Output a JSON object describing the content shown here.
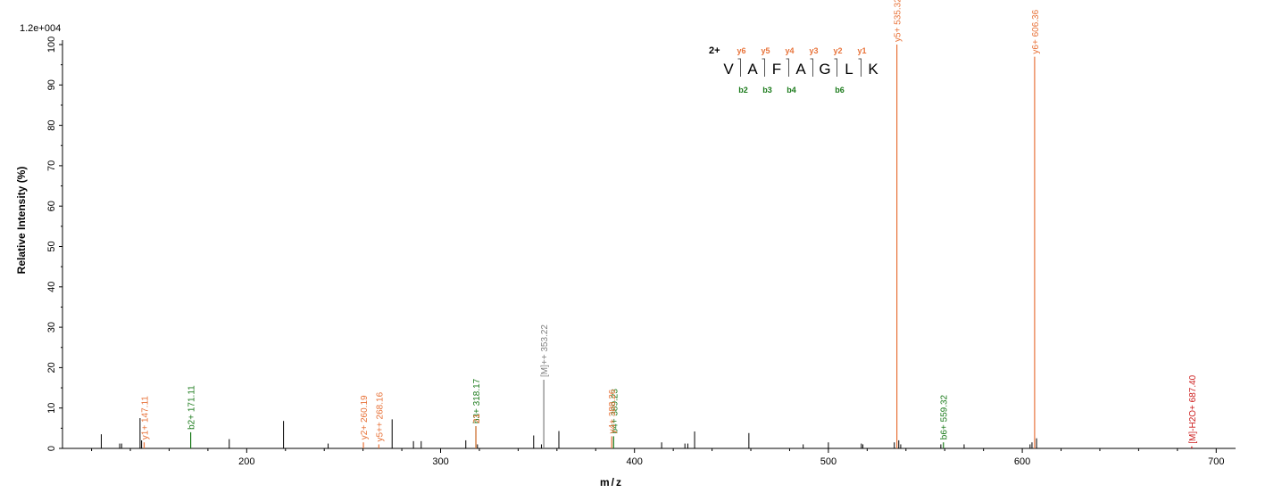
{
  "chart_data": {
    "type": "bar",
    "scale_label": "1.2e+004",
    "xlabel": "m/z",
    "ylabel": "Relative   Intensity (%)",
    "xlim": [
      105,
      710
    ],
    "ylim": [
      0,
      100
    ],
    "x_ticks": [
      200,
      300,
      400,
      500,
      600,
      700
    ],
    "y_ticks": [
      0,
      10,
      20,
      30,
      40,
      50,
      60,
      70,
      80,
      90,
      100
    ],
    "colors": {
      "y": "#e8733a",
      "b": "#1a7a1a",
      "precursor": "#808080",
      "loss": "#cc1a1a",
      "other": "#000000",
      "charge": "#00008b",
      "axis": "#000000"
    },
    "annotated_peaks": [
      {
        "mz": 147.11,
        "intensity": 1.5,
        "label": "y1+ 147.11",
        "ion": "y"
      },
      {
        "mz": 171.11,
        "intensity": 4.0,
        "label": "b2+ 171.11",
        "ion": "b"
      },
      {
        "mz": 260.19,
        "intensity": 1.5,
        "label": "y2+ 260.19",
        "ion": "y"
      },
      {
        "mz": 268.16,
        "intensity": 1.0,
        "label": "y5++ 268.16",
        "ion": "y"
      },
      {
        "mz": 318.17,
        "intensity": 5.5,
        "label": "b3+ 318.17",
        "ion": "b"
      },
      {
        "mz": 318.21,
        "intensity": 5.5,
        "label": "21",
        "ion": "y"
      },
      {
        "mz": 353.22,
        "intensity": 17.0,
        "label": "[M]++ 353.22",
        "ion": "precursor"
      },
      {
        "mz": 389.23,
        "intensity": 3.0,
        "label": "b4+ 389.23",
        "ion": "b"
      },
      {
        "mz": 388.26,
        "intensity": 3.0,
        "label": "y4+ 388.26",
        "ion": "y"
      },
      {
        "mz": 535.32,
        "intensity": 100,
        "label": "y5+ 535.32",
        "ion": "y"
      },
      {
        "mz": 559.32,
        "intensity": 1.5,
        "label": "b6+ 559.32",
        "ion": "b"
      },
      {
        "mz": 606.36,
        "intensity": 97,
        "label": "y6+ 606.36",
        "ion": "y"
      },
      {
        "mz": 687.4,
        "intensity": 0.5,
        "label": "[M]-H2O+ 687.40",
        "ion": "loss"
      }
    ],
    "other_peaks": [
      {
        "mz": 125.0,
        "intensity": 3.5
      },
      {
        "mz": 134.5,
        "intensity": 1.2
      },
      {
        "mz": 135.5,
        "intensity": 1.2
      },
      {
        "mz": 145.0,
        "intensity": 7.5
      },
      {
        "mz": 145.8,
        "intensity": 2.0
      },
      {
        "mz": 191.0,
        "intensity": 2.3
      },
      {
        "mz": 219.0,
        "intensity": 6.8
      },
      {
        "mz": 242.0,
        "intensity": 1.2
      },
      {
        "mz": 275.0,
        "intensity": 7.2
      },
      {
        "mz": 286.0,
        "intensity": 1.8
      },
      {
        "mz": 290.0,
        "intensity": 1.8
      },
      {
        "mz": 313.0,
        "intensity": 2.0
      },
      {
        "mz": 319.0,
        "intensity": 1.0
      },
      {
        "mz": 348.0,
        "intensity": 3.2
      },
      {
        "mz": 352.0,
        "intensity": 1.0
      },
      {
        "mz": 361.0,
        "intensity": 4.3
      },
      {
        "mz": 414.0,
        "intensity": 1.5
      },
      {
        "mz": 426.0,
        "intensity": 1.2
      },
      {
        "mz": 427.5,
        "intensity": 1.2
      },
      {
        "mz": 431.0,
        "intensity": 4.2
      },
      {
        "mz": 459.0,
        "intensity": 3.8
      },
      {
        "mz": 487.0,
        "intensity": 1.0
      },
      {
        "mz": 500.0,
        "intensity": 1.5
      },
      {
        "mz": 517.0,
        "intensity": 1.2
      },
      {
        "mz": 517.8,
        "intensity": 1.0
      },
      {
        "mz": 534.0,
        "intensity": 1.5
      },
      {
        "mz": 536.3,
        "intensity": 2.0
      },
      {
        "mz": 537.3,
        "intensity": 1.0
      },
      {
        "mz": 558.0,
        "intensity": 1.0
      },
      {
        "mz": 570.0,
        "intensity": 1.0
      },
      {
        "mz": 604.0,
        "intensity": 1.0
      },
      {
        "mz": 605.0,
        "intensity": 1.5
      },
      {
        "mz": 607.36,
        "intensity": 2.5
      }
    ],
    "sequence": {
      "charge": "2+",
      "residues": [
        "V",
        "A",
        "F",
        "A",
        "G",
        "L",
        "K"
      ],
      "y_ions": [
        "y6",
        "y5",
        "y4",
        "y3",
        "y2",
        "y1"
      ],
      "b_ions": [
        {
          "after": 1,
          "label": "b2"
        },
        {
          "after": 2,
          "label": "b3"
        },
        {
          "after": 3,
          "label": "b4"
        },
        {
          "after": 5,
          "label": "b6"
        }
      ]
    }
  }
}
